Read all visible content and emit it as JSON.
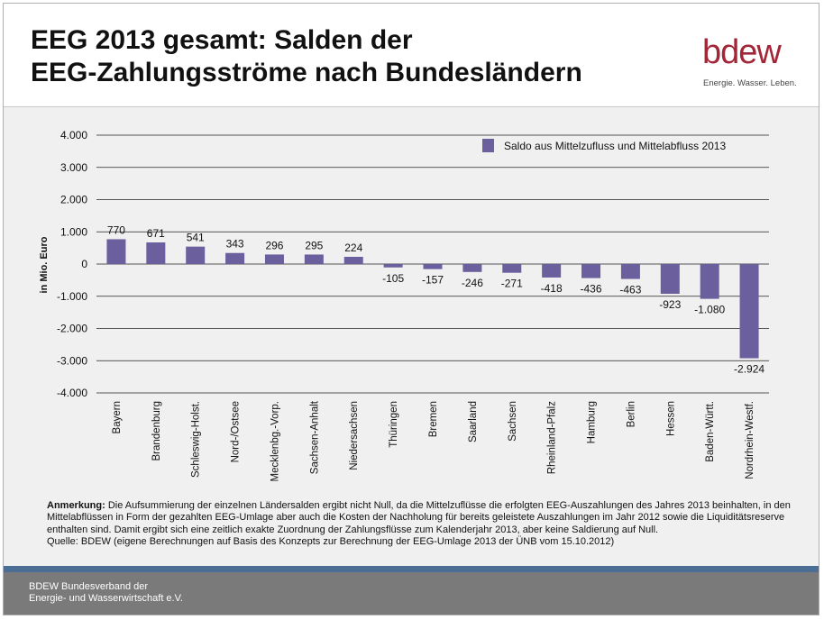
{
  "header": {
    "title_line1": "EEG 2013 gesamt: Salden der",
    "title_line2": "EEG-Zahlungsströme nach Bundesländern",
    "logo_text": "bdew",
    "logo_tagline": "Energie. Wasser. Leben."
  },
  "chart_data": {
    "type": "bar",
    "ylabel": "in Mio. Euro",
    "ylim": [
      -4000,
      4000
    ],
    "yticks": [
      4000,
      3000,
      2000,
      1000,
      0,
      -1000,
      -2000,
      -3000,
      -4000
    ],
    "ytick_labels": [
      "4.000",
      "3.000",
      "2.000",
      "1.000",
      "0",
      "-1.000",
      "-2.000",
      "-3.000",
      "-4.000"
    ],
    "grid": true,
    "legend": "top-right",
    "series": [
      {
        "name": "Saldo aus Mittelzufluss und Mittelabfluss 2013",
        "values": [
          770,
          671,
          541,
          343,
          296,
          295,
          224,
          -105,
          -157,
          -246,
          -271,
          -418,
          -436,
          -463,
          -923,
          -1080,
          -2924
        ]
      }
    ],
    "categories": [
      "Bayern",
      "Brandenburg",
      "Schleswig-Holst.",
      "Nord-/Ostsee",
      "Mecklenbg.-Vorp.",
      "Sachsen-Anhalt",
      "Niedersachsen",
      "Thüringen",
      "Bremen",
      "Saarland",
      "Sachsen",
      "Rheinland-Pfalz",
      "Hamburg",
      "Berlin",
      "Hessen",
      "Baden-Württ.",
      "Nordrhein-Westf."
    ],
    "data_labels": [
      "770",
      "671",
      "541",
      "343",
      "296",
      "295",
      "224",
      "-105",
      "-157",
      "-246",
      "-271",
      "-418",
      "-436",
      "-463",
      "-923",
      "-1.080",
      "-2.924"
    ],
    "bar_color": "#6b5f9e"
  },
  "note": {
    "label": "Anmerkung:",
    "text": "Die Aufsummierung der einzelnen Ländersalden ergibt nicht Null, da die Mittelzuflüsse die erfolgten EEG-Auszahlungen des Jahres 2013 beinhalten, in den Mittelabflüssen in Form der gezahlten EEG-Umlage aber auch die Kosten der Nachholung für bereits geleistete Auszahlungen im Jahr 2012 sowie die Liquiditätsreserve enthalten sind. Damit ergibt sich eine zeitlich exakte Zuordnung der Zahlungsflüsse zum Kalenderjahr 2013, aber keine Saldierung auf Null.",
    "source": "Quelle: BDEW (eigene Berechnungen auf Basis des Konzepts zur Berechnung der EEG-Umlage 2013 der ÜNB vom 15.10.2012)"
  },
  "footer": {
    "line1": "BDEW Bundesverband der",
    "line2": "Energie- und Wasserwirtschaft e.V."
  }
}
